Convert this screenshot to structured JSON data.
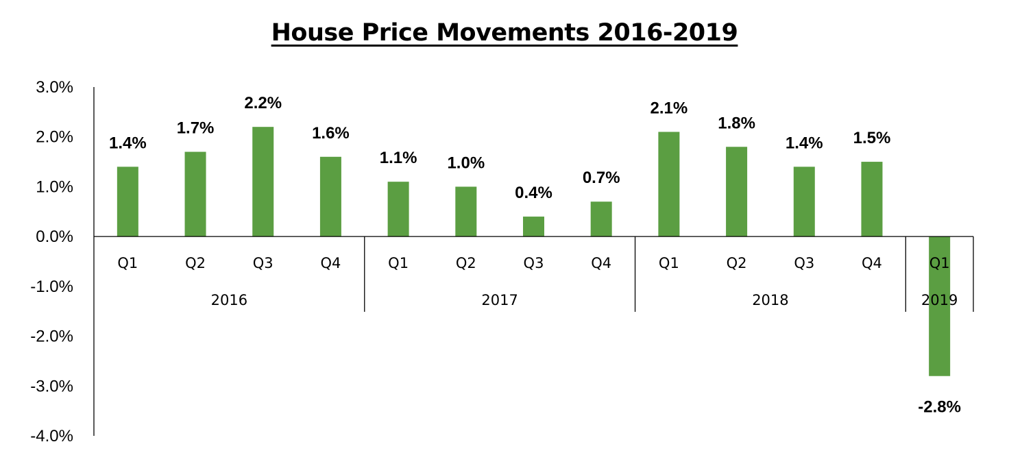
{
  "chart_data": {
    "type": "bar",
    "title": "House Price Movements 2016-2019",
    "xlabel": "",
    "ylabel": "",
    "ylim": [
      -4.0,
      3.0
    ],
    "y_ticks": [
      "3.0%",
      "2.0%",
      "1.0%",
      "0.0%",
      "-1.0%",
      "-2.0%",
      "-3.0%",
      "-4.0%"
    ],
    "y_tick_values": [
      3.0,
      2.0,
      1.0,
      0.0,
      -1.0,
      -2.0,
      -3.0,
      -4.0
    ],
    "grid": false,
    "legend": "none",
    "bar_color": "#5B9E42",
    "groups": [
      {
        "label": "2016",
        "categories": [
          "Q1",
          "Q2",
          "Q3",
          "Q4"
        ],
        "values": [
          1.4,
          1.7,
          2.2,
          1.6
        ],
        "data_labels": [
          "1.4%",
          "1.7%",
          "2.2%",
          "1.6%"
        ]
      },
      {
        "label": "2017",
        "categories": [
          "Q1",
          "Q2",
          "Q3",
          "Q4"
        ],
        "values": [
          1.1,
          1.0,
          0.4,
          0.7
        ],
        "data_labels": [
          "1.1%",
          "1.0%",
          "0.4%",
          "0.7%"
        ]
      },
      {
        "label": "2018",
        "categories": [
          "Q1",
          "Q2",
          "Q3",
          "Q4"
        ],
        "values": [
          2.1,
          1.8,
          1.4,
          1.5
        ],
        "data_labels": [
          "2.1%",
          "1.8%",
          "1.4%",
          "1.5%"
        ]
      },
      {
        "label": "2019",
        "categories": [
          "Q1"
        ],
        "values": [
          -2.8
        ],
        "data_labels": [
          "-2.8%"
        ]
      }
    ]
  }
}
